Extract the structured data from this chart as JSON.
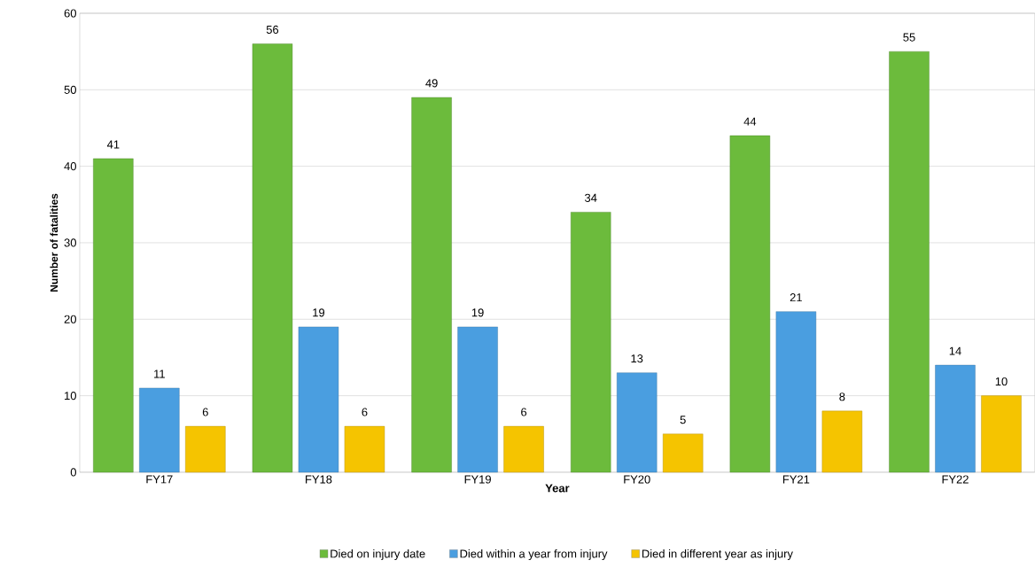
{
  "chart_data": {
    "type": "bar",
    "xlabel": "Year",
    "ylabel": "Number of fatalities",
    "categories": [
      "FY17",
      "FY18",
      "FY19",
      "FY20",
      "FY21",
      "FY22"
    ],
    "series": [
      {
        "name": "Died on injury date",
        "color": "#6cbb3c",
        "values": [
          41,
          56,
          49,
          34,
          44,
          55
        ]
      },
      {
        "name": "Died within a year from injury",
        "color": "#4a9ee0",
        "values": [
          11,
          19,
          19,
          13,
          21,
          14
        ]
      },
      {
        "name": "Died in different year as injury",
        "color": "#f5c400",
        "values": [
          6,
          6,
          6,
          5,
          8,
          10
        ]
      }
    ],
    "ylim": [
      0,
      60
    ],
    "yticks": [
      0,
      10,
      20,
      30,
      40,
      50,
      60
    ],
    "grid": "y",
    "legend": "bottom",
    "data_labels": true
  }
}
